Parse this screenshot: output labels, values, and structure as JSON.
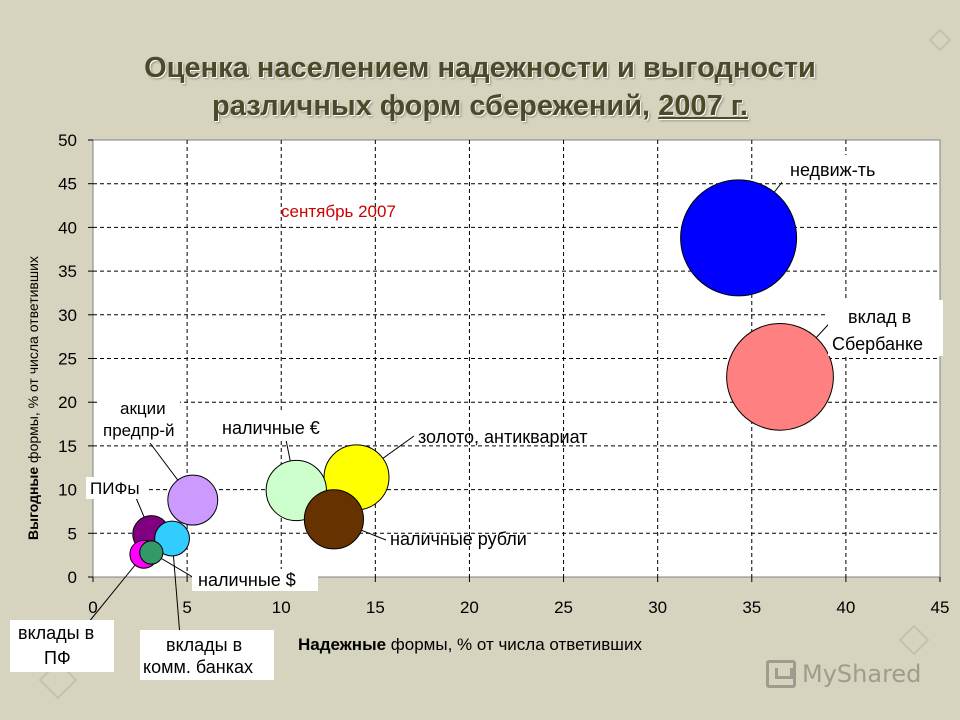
{
  "title": {
    "line1": "Оценка населением надежности и выгодности",
    "line2_prefix": "различных форм сбережений, ",
    "line2_year": "2007 г."
  },
  "chart_data": {
    "type": "bubble",
    "annotation": "сентябрь 2007",
    "xlabel_bold": "Надежные",
    "xlabel_rest": " формы, % от числа ответивших",
    "ylabel_bold": "Выгодные",
    "ylabel_rest": " формы, % от числа ответивших",
    "xlim": [
      0,
      45
    ],
    "ylim": [
      0,
      50
    ],
    "xticks": [
      "0",
      "5",
      "10",
      "15",
      "20",
      "25",
      "30",
      "35",
      "40",
      "45"
    ],
    "yticks": [
      "0",
      "5",
      "10",
      "15",
      "20",
      "25",
      "30",
      "35",
      "40",
      "45",
      "50"
    ],
    "grid": true,
    "points": [
      {
        "label": "недвиж-ть",
        "x": 34.3,
        "y": 38.8,
        "size": 100,
        "color": "#0000ff"
      },
      {
        "label": "вклад в Сбербанке",
        "x": 36.5,
        "y": 22.9,
        "size": 92,
        "color": "#ff8080"
      },
      {
        "label": "золото, антиквариат",
        "x": 14.0,
        "y": 11.4,
        "size": 56,
        "color": "#ffff00"
      },
      {
        "label": "наличные рубли",
        "x": 12.8,
        "y": 6.6,
        "size": 51,
        "color": "#663300"
      },
      {
        "label": "наличные €",
        "x": 10.8,
        "y": 9.9,
        "size": 52,
        "color": "#ccffcc"
      },
      {
        "label": "акции предпр-й",
        "x": 5.3,
        "y": 8.8,
        "size": 43,
        "color": "#cc99ff"
      },
      {
        "label": "вклады в комм. банках",
        "x": 4.2,
        "y": 4.4,
        "size": 30,
        "color": "#33ccff"
      },
      {
        "label": "ПИФы",
        "x": 3.1,
        "y": 4.9,
        "size": 32,
        "color": "#800080"
      },
      {
        "label": "наличные $",
        "x": 3.1,
        "y": 2.8,
        "size": 20,
        "color": "#339966"
      },
      {
        "label": "вклады в ПФ",
        "x": 2.7,
        "y": 2.6,
        "size": 24,
        "color": "#ff00ff"
      }
    ]
  },
  "watermark": "MyShared"
}
